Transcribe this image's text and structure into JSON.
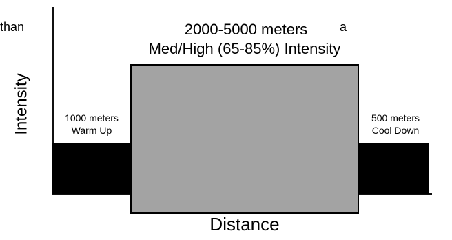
{
  "fragments": {
    "left": "than",
    "right": "a"
  },
  "axes": {
    "y_label": "Intensity",
    "x_label": "Distance"
  },
  "phases": [
    {
      "name": "warm-up",
      "line1": "1000 meters",
      "line2": "Warm Up"
    },
    {
      "name": "main-set",
      "line1": "2000-5000 meters",
      "line2": "Med/High (65-85%) Intensity"
    },
    {
      "name": "cool-down",
      "line1": "500 meters",
      "line2": "Cool Down"
    }
  ],
  "colors": {
    "warm_up": "#000000",
    "main_set": "#a3a3a3",
    "cool_down": "#000000",
    "axes": "#111111"
  }
}
